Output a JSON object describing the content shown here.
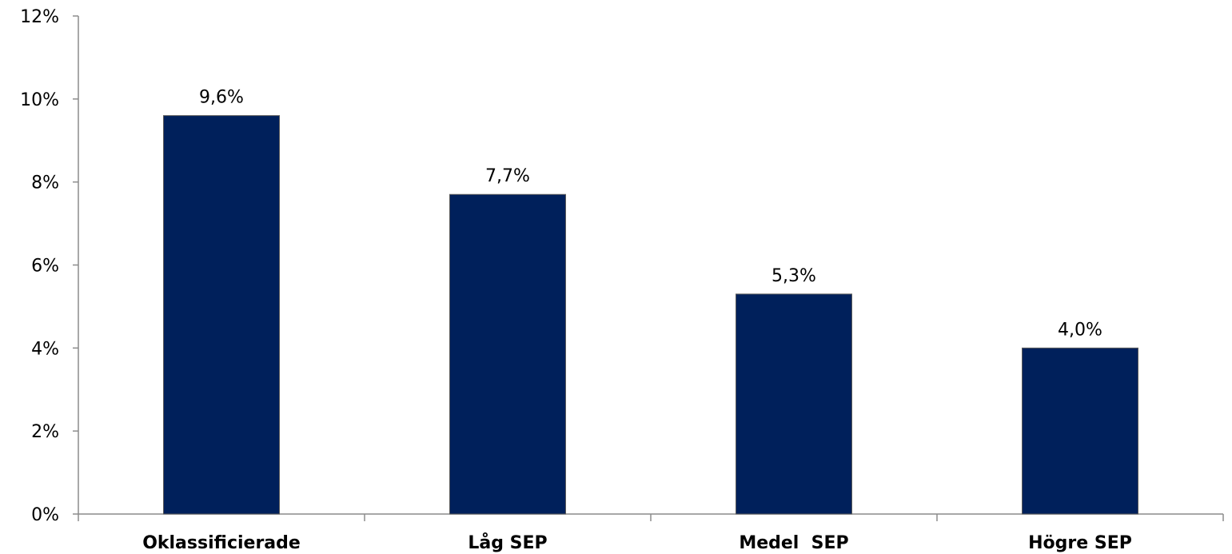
{
  "chart_data": {
    "type": "bar",
    "categories": [
      "Oklassificierade",
      "Låg SEP",
      "Medel  SEP",
      "Högre SEP"
    ],
    "values": [
      9.6,
      7.7,
      5.3,
      4.0
    ],
    "data_labels": [
      "9,6%",
      "7,7%",
      "5,3%",
      "4,0%"
    ],
    "ylim": [
      0,
      12
    ],
    "y_ticks": [
      0,
      2,
      4,
      6,
      8,
      10,
      12
    ],
    "y_tick_labels": [
      "0%",
      "2%",
      "4%",
      "6%",
      "8%",
      "10%",
      "12%"
    ],
    "title": "",
    "xlabel": "",
    "ylabel": "",
    "grid": false,
    "colors": {
      "bar": "#00205b",
      "axis": "#8c8c8c"
    }
  }
}
